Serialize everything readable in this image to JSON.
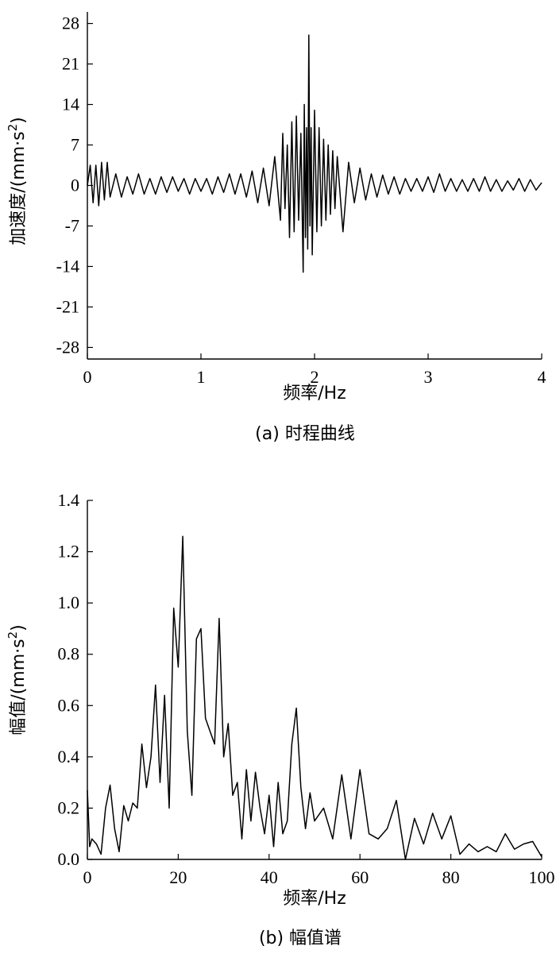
{
  "chart_data": [
    {
      "type": "line",
      "caption": "(a) 时程曲线",
      "xlabel": "频率/Hz",
      "ylabel": "加速度/(mm·s",
      "ylabel_sup": "2",
      "ylabel_close": ")",
      "xlim": [
        0,
        4
      ],
      "ylim": [
        -30,
        30
      ],
      "xticks": [
        0,
        1,
        2,
        3,
        4
      ],
      "xtick_labels": [
        "0",
        "1",
        "2",
        "3",
        "4"
      ],
      "yticks": [
        28,
        21,
        14,
        7,
        0,
        -7,
        -14,
        -21,
        -28
      ],
      "ytick_labels": [
        "28",
        "21",
        "14",
        "7",
        "0",
        "-7",
        "-14",
        "-21",
        "-28"
      ],
      "grid": false,
      "series": [
        {
          "x": [
            0,
            0.025,
            0.05,
            0.075,
            0.1,
            0.125,
            0.15,
            0.175,
            0.2,
            0.25,
            0.3,
            0.35,
            0.4,
            0.45,
            0.5,
            0.55,
            0.6,
            0.65,
            0.7,
            0.75,
            0.8,
            0.85,
            0.9,
            0.95,
            1.0,
            1.05,
            1.1,
            1.15,
            1.2,
            1.25,
            1.3,
            1.35,
            1.4,
            1.45,
            1.5,
            1.55,
            1.6,
            1.65,
            1.7,
            1.72,
            1.74,
            1.76,
            1.78,
            1.8,
            1.82,
            1.84,
            1.86,
            1.88,
            1.9,
            1.91,
            1.92,
            1.93,
            1.94,
            1.95,
            1.96,
            1.97,
            1.98,
            2.0,
            2.02,
            2.04,
            2.06,
            2.08,
            2.1,
            2.12,
            2.14,
            2.16,
            2.18,
            2.2,
            2.25,
            2.3,
            2.35,
            2.4,
            2.45,
            2.5,
            2.55,
            2.6,
            2.65,
            2.7,
            2.75,
            2.8,
            2.85,
            2.9,
            2.95,
            3.0,
            3.05,
            3.1,
            3.15,
            3.2,
            3.25,
            3.3,
            3.35,
            3.4,
            3.45,
            3.5,
            3.55,
            3.6,
            3.65,
            3.7,
            3.75,
            3.8,
            3.85,
            3.9,
            3.95,
            4.0
          ],
          "y": [
            0,
            3.5,
            -3,
            3.5,
            -3.5,
            4,
            -2.5,
            4,
            -2,
            2,
            -2,
            1.5,
            -1.5,
            2,
            -1.5,
            1.2,
            -1.5,
            1.5,
            -1.2,
            1.5,
            -1,
            1.2,
            -1.5,
            1.2,
            -1,
            1.2,
            -1.5,
            1.5,
            -1.2,
            2,
            -1.5,
            2,
            -2,
            2.5,
            -3,
            3,
            -3.5,
            5,
            -6,
            9,
            -4,
            7,
            -9,
            11,
            -8,
            12,
            -6,
            9,
            -15,
            14,
            -9,
            10,
            -11,
            26,
            -7,
            10,
            -12,
            13,
            -8,
            10,
            -7,
            8,
            -6,
            7,
            -5,
            6,
            -4,
            5,
            -8,
            4,
            -3,
            3,
            -2.5,
            2,
            -2,
            1.8,
            -1.5,
            1.5,
            -1.5,
            1.2,
            -1,
            1.2,
            -1,
            1.5,
            -1.2,
            2,
            -1,
            1.2,
            -1,
            1,
            -1,
            1.2,
            -1,
            1.5,
            -1,
            1,
            -1,
            0.8,
            -0.8,
            1.2,
            -1,
            1,
            -0.8,
            0.5
          ]
        }
      ]
    },
    {
      "type": "line",
      "caption": "(b) 幅值谱",
      "xlabel": "频率/Hz",
      "ylabel": "幅值/(mm·s",
      "ylabel_sup": "2",
      "ylabel_close": ")",
      "xlim": [
        0,
        100
      ],
      "ylim": [
        0,
        1.4
      ],
      "xticks": [
        0,
        20,
        40,
        60,
        80,
        100
      ],
      "xtick_labels": [
        "0",
        "20",
        "40",
        "60",
        "80",
        "100"
      ],
      "yticks": [
        0,
        0.2,
        0.4,
        0.6,
        0.8,
        1.0,
        1.2,
        1.4
      ],
      "ytick_labels": [
        "0.0",
        "0.2",
        "0.4",
        "0.6",
        "0.8",
        "1.0",
        "1.2",
        "1.4"
      ],
      "grid": false,
      "series": [
        {
          "x": [
            0,
            0.5,
            1,
            2,
            3,
            4,
            5,
            6,
            7,
            8,
            9,
            10,
            11,
            12,
            13,
            14,
            15,
            16,
            17,
            18,
            19,
            20,
            21,
            22,
            23,
            24,
            25,
            26,
            27,
            28,
            29,
            30,
            31,
            32,
            33,
            34,
            35,
            36,
            37,
            38,
            39,
            40,
            41,
            42,
            43,
            44,
            45,
            46,
            47,
            48,
            49,
            50,
            52,
            54,
            56,
            58,
            60,
            62,
            64,
            66,
            68,
            70,
            72,
            74,
            76,
            78,
            80,
            82,
            84,
            86,
            88,
            90,
            92,
            94,
            96,
            98,
            100
          ],
          "y": [
            0.27,
            0.05,
            0.08,
            0.06,
            0.02,
            0.2,
            0.29,
            0.12,
            0.03,
            0.21,
            0.15,
            0.22,
            0.2,
            0.45,
            0.28,
            0.4,
            0.68,
            0.3,
            0.64,
            0.2,
            0.98,
            0.75,
            1.26,
            0.5,
            0.25,
            0.86,
            0.9,
            0.55,
            0.5,
            0.45,
            0.94,
            0.4,
            0.53,
            0.25,
            0.3,
            0.08,
            0.35,
            0.15,
            0.34,
            0.2,
            0.1,
            0.25,
            0.05,
            0.3,
            0.1,
            0.15,
            0.45,
            0.59,
            0.28,
            0.12,
            0.26,
            0.15,
            0.2,
            0.08,
            0.33,
            0.08,
            0.35,
            0.1,
            0.08,
            0.12,
            0.23,
            0.0,
            0.16,
            0.06,
            0.18,
            0.08,
            0.17,
            0.02,
            0.06,
            0.03,
            0.05,
            0.03,
            0.1,
            0.04,
            0.06,
            0.07,
            0.01
          ]
        }
      ]
    }
  ]
}
